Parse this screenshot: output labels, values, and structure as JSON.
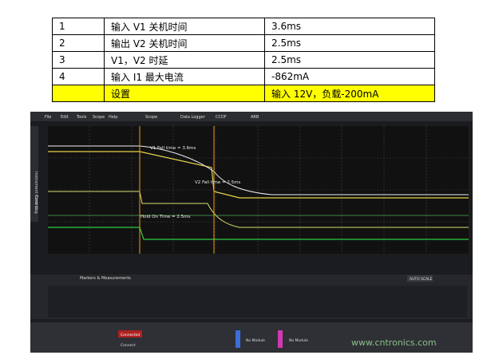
{
  "table": {
    "rows": [
      [
        "1",
        "输入 V1 关机时间",
        "3.6ms"
      ],
      [
        "2",
        "输出 V2 关机时间",
        "2.5ms"
      ],
      [
        "3",
        "V1，V2 时延",
        "2.5ms"
      ],
      [
        "4",
        "输入 I1 最大电流",
        "-862mA"
      ],
      [
        "",
        "设置",
        "输入 12V，负载-200mA"
      ]
    ]
  },
  "screenshot": {
    "menu": [
      "File",
      "Edit",
      "Tools",
      "Scope",
      "Help"
    ],
    "tabs": [
      "Scope",
      "Data Logger",
      "CCDF",
      "ARB"
    ],
    "annotations": [
      "V1 Fall time = 3.6ms",
      "V2 Fall time = 2.5ms",
      "Hold On Time = 2.5ms"
    ],
    "side_tabs": [
      "Instrument Control",
      "Error Log"
    ],
    "panel_tabs": [
      "Markers & Measurements"
    ],
    "buttons": [
      "AUTO SCALE"
    ],
    "bottom": [
      "Connected",
      "Connect",
      "No Module",
      "No Module"
    ],
    "watermark": "www.cntronics.com"
  }
}
